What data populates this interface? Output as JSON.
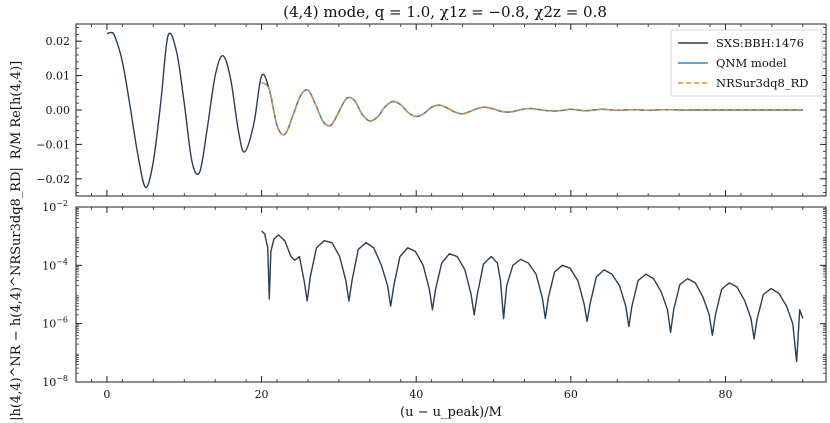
{
  "chart_data": [
    {
      "type": "line",
      "title": "(4,4) mode, q = 1.0, χ1z = −0.8, χ2z = 0.8",
      "xlabel": "",
      "ylabel": "R/M Re[h(4,4)]",
      "xlim": [
        -4,
        93
      ],
      "ylim": [
        -0.025,
        0.025
      ],
      "yticks": [
        -0.02,
        -0.01,
        0.0,
        0.01,
        0.02
      ],
      "ytick_labels": [
        "−0.02",
        "−0.01",
        "0.00",
        "0.01",
        "0.02"
      ],
      "grid": false,
      "legend_position": "top-right",
      "series": [
        {
          "name": "SXS:BBH:1476",
          "color": "#2c3e50",
          "style": "solid",
          "x": [
            0,
            0.5,
            1,
            2,
            3,
            4,
            5,
            6,
            7,
            7.9,
            9,
            10,
            11,
            12,
            13,
            14,
            15,
            16,
            17,
            17.8,
            19,
            20,
            21,
            22,
            23,
            24,
            25,
            26,
            27,
            28,
            29,
            30,
            31,
            32,
            33,
            34,
            35,
            36,
            37,
            38,
            39,
            40,
            41,
            42,
            43,
            44,
            45,
            46,
            47,
            48,
            49,
            50,
            51,
            52,
            53,
            54,
            55,
            56,
            57,
            58,
            59,
            60,
            62,
            64,
            66,
            68,
            70,
            72,
            74,
            76,
            78,
            80,
            82,
            84,
            86,
            88,
            90
          ],
          "y": [
            0.0222,
            0.0225,
            0.0215,
            0.014,
            0.001,
            -0.013,
            -0.0225,
            -0.015,
            0.003,
            0.0216,
            0.017,
            0.002,
            -0.015,
            -0.018,
            -0.005,
            0.01,
            0.0158,
            0.009,
            -0.006,
            -0.0122,
            -0.004,
            0.0099,
            0.006,
            -0.0045,
            -0.0071,
            -0.002,
            0.004,
            0.0058,
            0.0015,
            -0.0035,
            -0.0044,
            -0.0005,
            0.0034,
            0.0028,
            -0.0012,
            -0.0032,
            -0.002,
            0.001,
            0.0025,
            0.0015,
            -0.0008,
            -0.0019,
            -0.001,
            0.0008,
            0.0014,
            0.0006,
            -0.0006,
            -0.0011,
            -0.0004,
            0.0005,
            0.0008,
            0.0003,
            -0.0004,
            -0.0006,
            -0.0002,
            0.0003,
            0.0004,
            0.0001,
            -0.0002,
            -0.0003,
            -0.0001,
            0.0002,
            -0.0002,
            0.0002,
            -0.0001,
            0.0001,
            -0.0001,
            0.0001,
            0.0,
            0.0,
            0.0,
            0.0,
            0.0,
            0.0,
            0.0,
            0.0,
            0.0
          ]
        },
        {
          "name": "QNM model",
          "color": "#2e8bc0",
          "style": "solid",
          "x": [
            20,
            21,
            22,
            23,
            24,
            25,
            26,
            27,
            28,
            29,
            30,
            31,
            32,
            33,
            34,
            35,
            36,
            37,
            38,
            39,
            40,
            41,
            42,
            43,
            44,
            45,
            46,
            47,
            48,
            49,
            50,
            51,
            52,
            53,
            54,
            55,
            56,
            57,
            58,
            59,
            60,
            62,
            64,
            66,
            68,
            70,
            72,
            74,
            76,
            78,
            80,
            82,
            84,
            86,
            88,
            90
          ],
          "y": [
            0.008,
            0.006,
            -0.0045,
            -0.0071,
            -0.002,
            0.004,
            0.0058,
            0.0015,
            -0.0035,
            -0.0044,
            -0.0005,
            0.0034,
            0.0028,
            -0.0012,
            -0.0032,
            -0.002,
            0.001,
            0.0025,
            0.0015,
            -0.0008,
            -0.0019,
            -0.001,
            0.0008,
            0.0014,
            0.0006,
            -0.0006,
            -0.0011,
            -0.0004,
            0.0005,
            0.0008,
            0.0003,
            -0.0004,
            -0.0006,
            -0.0002,
            0.0003,
            0.0004,
            0.0001,
            -0.0002,
            -0.0003,
            -0.0001,
            0.0002,
            -0.0002,
            0.0002,
            -0.0001,
            0.0001,
            -0.0001,
            0.0001,
            0.0,
            0.0,
            0.0,
            0.0,
            0.0,
            0.0,
            0.0,
            0.0,
            0.0
          ]
        },
        {
          "name": "NRSur3dq8_RD",
          "color": "#f0892b",
          "style": "dashed",
          "x": [
            20,
            21,
            22,
            23,
            24,
            25,
            26,
            27,
            28,
            29,
            30,
            31,
            32,
            33,
            34,
            35,
            36,
            37,
            38,
            39,
            40,
            41,
            42,
            43,
            44,
            45,
            46,
            47,
            48,
            49,
            50,
            51,
            52,
            53,
            54,
            55,
            56,
            57,
            58,
            59,
            60,
            62,
            64,
            66,
            68,
            70,
            72,
            74,
            76,
            78,
            80,
            82,
            84,
            86,
            88,
            90
          ],
          "y": [
            0.008,
            0.006,
            -0.0045,
            -0.0071,
            -0.002,
            0.004,
            0.0058,
            0.0015,
            -0.0035,
            -0.0044,
            -0.0005,
            0.0034,
            0.0028,
            -0.0012,
            -0.0032,
            -0.002,
            0.001,
            0.0025,
            0.0015,
            -0.0008,
            -0.0019,
            -0.001,
            0.0008,
            0.0014,
            0.0006,
            -0.0006,
            -0.0011,
            -0.0004,
            0.0005,
            0.0008,
            0.0003,
            -0.0004,
            -0.0006,
            -0.0002,
            0.0003,
            0.0004,
            0.0001,
            -0.0002,
            -0.0003,
            -0.0001,
            0.0002,
            -0.0002,
            0.0002,
            -0.0001,
            0.0001,
            -0.0001,
            0.0001,
            0.0,
            0.0,
            0.0,
            0.0,
            0.0,
            0.0,
            0.0,
            0.0,
            0.0
          ]
        }
      ]
    },
    {
      "type": "line",
      "title": "",
      "xlabel": "(u − u_peak)/M",
      "ylabel": "|h(4,4)^NR − h(4,4)^NRSur3dq8_RD|",
      "xlim": [
        -4,
        93
      ],
      "ylim": [
        1e-08,
        0.01
      ],
      "yscale": "log",
      "xticks": [
        0,
        20,
        40,
        60,
        80
      ],
      "xtick_labels": [
        "0",
        "20",
        "40",
        "60",
        "80"
      ],
      "yticks": [
        1e-08,
        1e-06,
        0.0001,
        0.01
      ],
      "ytick_labels": [
        "10−8",
        "10−6",
        "10−4",
        "10−2"
      ],
      "grid": false,
      "series": [
        {
          "color": "#2c3e50",
          "style": "solid",
          "x": [
            20,
            20.4,
            20.8,
            21.0,
            21.2,
            21.6,
            22.2,
            23.0,
            23.8,
            24.3,
            24.9,
            25.5,
            25.9,
            26.3,
            27.1,
            28.1,
            29.1,
            30.1,
            30.9,
            31.3,
            31.7,
            32.5,
            33.5,
            34.5,
            35.5,
            36.3,
            36.7,
            37.1,
            37.9,
            38.9,
            39.9,
            40.9,
            41.7,
            42.1,
            42.5,
            43.3,
            44.3,
            45.3,
            46.3,
            47.1,
            47.5,
            47.9,
            48.7,
            49.7,
            50.5,
            50.9,
            51.3,
            51.7,
            52.5,
            53.5,
            54.5,
            55.5,
            56.3,
            56.7,
            57.1,
            57.9,
            58.9,
            59.9,
            60.9,
            61.7,
            62.1,
            62.5,
            63.3,
            64.3,
            65.3,
            66.3,
            67.1,
            67.5,
            67.9,
            68.7,
            69.7,
            70.7,
            71.7,
            72.5,
            72.9,
            73.3,
            74.1,
            75.1,
            76.1,
            77.1,
            77.9,
            78.3,
            78.7,
            79.5,
            80.5,
            81.5,
            82.5,
            83.3,
            83.7,
            84.1,
            84.9,
            85.9,
            86.9,
            87.9,
            88.7,
            89.2,
            89.6,
            90.0
          ],
          "y": [
            0.0015,
            0.0012,
            0.0004,
            7e-06,
            0.0003,
            0.0008,
            0.0011,
            0.0007,
            0.0002,
            0.00015,
            0.0002,
            3e-05,
            6e-06,
            4e-05,
            0.0004,
            0.0007,
            0.0006,
            0.0002,
            3e-05,
            6e-06,
            3e-05,
            0.00035,
            0.0006,
            0.0004,
            0.0001,
            2e-05,
            4e-06,
            2e-05,
            0.0002,
            0.0004,
            0.0003,
            0.0001,
            1.5e-05,
            3e-06,
            1.5e-05,
            0.00012,
            0.00025,
            0.0002,
            7e-05,
            1e-05,
            2e-06,
            1e-05,
            0.00011,
            0.0002,
            0.00012,
            3e-05,
            1.5e-06,
            2e-05,
            0.0001,
            0.00016,
            0.00012,
            5e-05,
            8e-06,
            1.5e-06,
            8e-06,
            6e-05,
            0.0001,
            8e-05,
            3e-05,
            5e-06,
            1.2e-06,
            5e-06,
            4e-05,
            7e-05,
            5e-05,
            2e-05,
            4e-06,
            8e-07,
            4e-06,
            3e-05,
            5e-05,
            3.5e-05,
            1.2e-05,
            3e-06,
            5e-07,
            3e-06,
            2.2e-05,
            3.5e-05,
            2.5e-05,
            8e-06,
            2e-06,
            4e-07,
            2e-06,
            1.5e-05,
            2.5e-05,
            1.8e-05,
            6e-06,
            1.5e-06,
            3e-07,
            1.5e-06,
            1e-05,
            1.6e-05,
            1.1e-05,
            4e-06,
            1e-06,
            5e-08,
            3e-06,
            1.5e-06
          ]
        }
      ]
    }
  ]
}
